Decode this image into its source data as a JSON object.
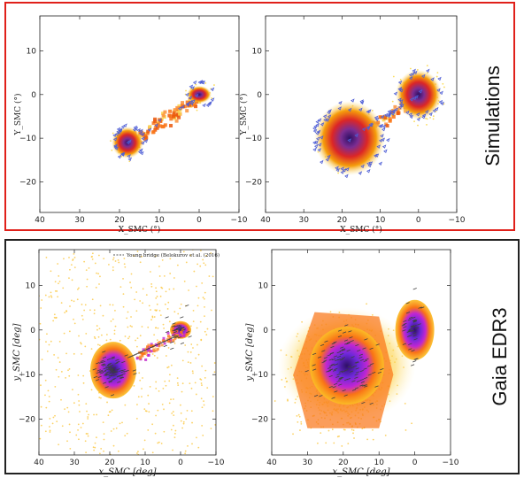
{
  "colors": {
    "simulation_border": "#e0201a",
    "gaia_border": "#222222",
    "density_low": "#fde68a",
    "density_mid": "#f59e0b",
    "density_high": "#7c3aed",
    "density_peak": "#2e1065",
    "vectors_sim": "#4f5fd6",
    "vectors_gaia": "#3f3f3f"
  },
  "row_labels": {
    "simulations": "Simulations",
    "gaia": "Gaia EDR3"
  },
  "chart_data": [
    {
      "type": "scatter",
      "panel": "simulations-left",
      "xlabel": "X_SMC (°)",
      "ylabel": "Y_SMC (°)",
      "xlim": [
        40,
        -10
      ],
      "ylim": [
        -27,
        18
      ],
      "xticks": [
        40,
        30,
        20,
        10,
        0,
        -10
      ],
      "yticks": [
        10,
        0,
        -10,
        -20
      ],
      "tick_labels": {
        "x": [
          "40",
          "30",
          "20",
          "10",
          "0",
          "−10"
        ],
        "y": [
          "10",
          "0",
          "−10",
          "−20"
        ]
      },
      "density_peaks": [
        {
          "x": 18,
          "y": -11
        },
        {
          "x": 0,
          "y": 0
        }
      ],
      "features": [
        "density heatmap",
        "velocity vectors (blue)"
      ]
    },
    {
      "type": "scatter",
      "panel": "simulations-right",
      "xlabel": "X_SMC (°)",
      "ylabel": "Y_SMC (°)",
      "xlim": [
        40,
        -10
      ],
      "ylim": [
        -27,
        18
      ],
      "xticks": [
        40,
        30,
        20,
        10,
        0,
        -10
      ],
      "yticks": [
        10,
        0,
        -10,
        -20
      ],
      "tick_labels": {
        "x": [
          "40",
          "30",
          "20",
          "10",
          "0",
          "−10"
        ],
        "y": [
          "10",
          "0",
          "−10",
          "−20"
        ]
      },
      "density_peaks": [
        {
          "x": 18,
          "y": -10
        },
        {
          "x": 0,
          "y": 0
        }
      ],
      "features": [
        "density heatmap",
        "velocity vectors (blue)"
      ]
    },
    {
      "type": "scatter",
      "panel": "gaia-left",
      "xlabel": "x_SMC [deg]",
      "ylabel": "y_SMC [deg]",
      "xlim": [
        40,
        -10
      ],
      "ylim": [
        -28,
        18
      ],
      "xticks": [
        40,
        30,
        20,
        10,
        0,
        -10
      ],
      "yticks": [
        10,
        0,
        -10,
        -20
      ],
      "tick_labels": {
        "x": [
          "40",
          "30",
          "20",
          "10",
          "0",
          "−10"
        ],
        "y": [
          "10",
          "0",
          "−10",
          "−20"
        ]
      },
      "legend": {
        "entries": [
          "Young bridge (Belokurov et al. (2016)"
        ],
        "placement": "top-right"
      },
      "density_peaks": [
        {
          "x": 19,
          "y": -9
        },
        {
          "x": 0,
          "y": 0
        }
      ],
      "features": [
        "density heatmap",
        "proper motion vectors (black)"
      ]
    },
    {
      "type": "scatter",
      "panel": "gaia-right",
      "xlabel": "x_SMC [deg]",
      "ylabel": "y_SMC [deg]",
      "xlim": [
        40,
        -10
      ],
      "ylim": [
        -28,
        18
      ],
      "xticks": [
        40,
        30,
        20,
        10,
        0,
        -10
      ],
      "yticks": [
        10,
        0,
        -10,
        -20
      ],
      "tick_labels": {
        "x": [
          "40",
          "30",
          "20",
          "10",
          "0",
          "−10"
        ],
        "y": [
          "10",
          "0",
          "−10",
          "−20"
        ]
      },
      "density_peaks": [
        {
          "x": 19,
          "y": -8
        },
        {
          "x": 0,
          "y": 0
        }
      ],
      "features": [
        "density heatmap",
        "proper motion vectors (black)"
      ]
    }
  ]
}
